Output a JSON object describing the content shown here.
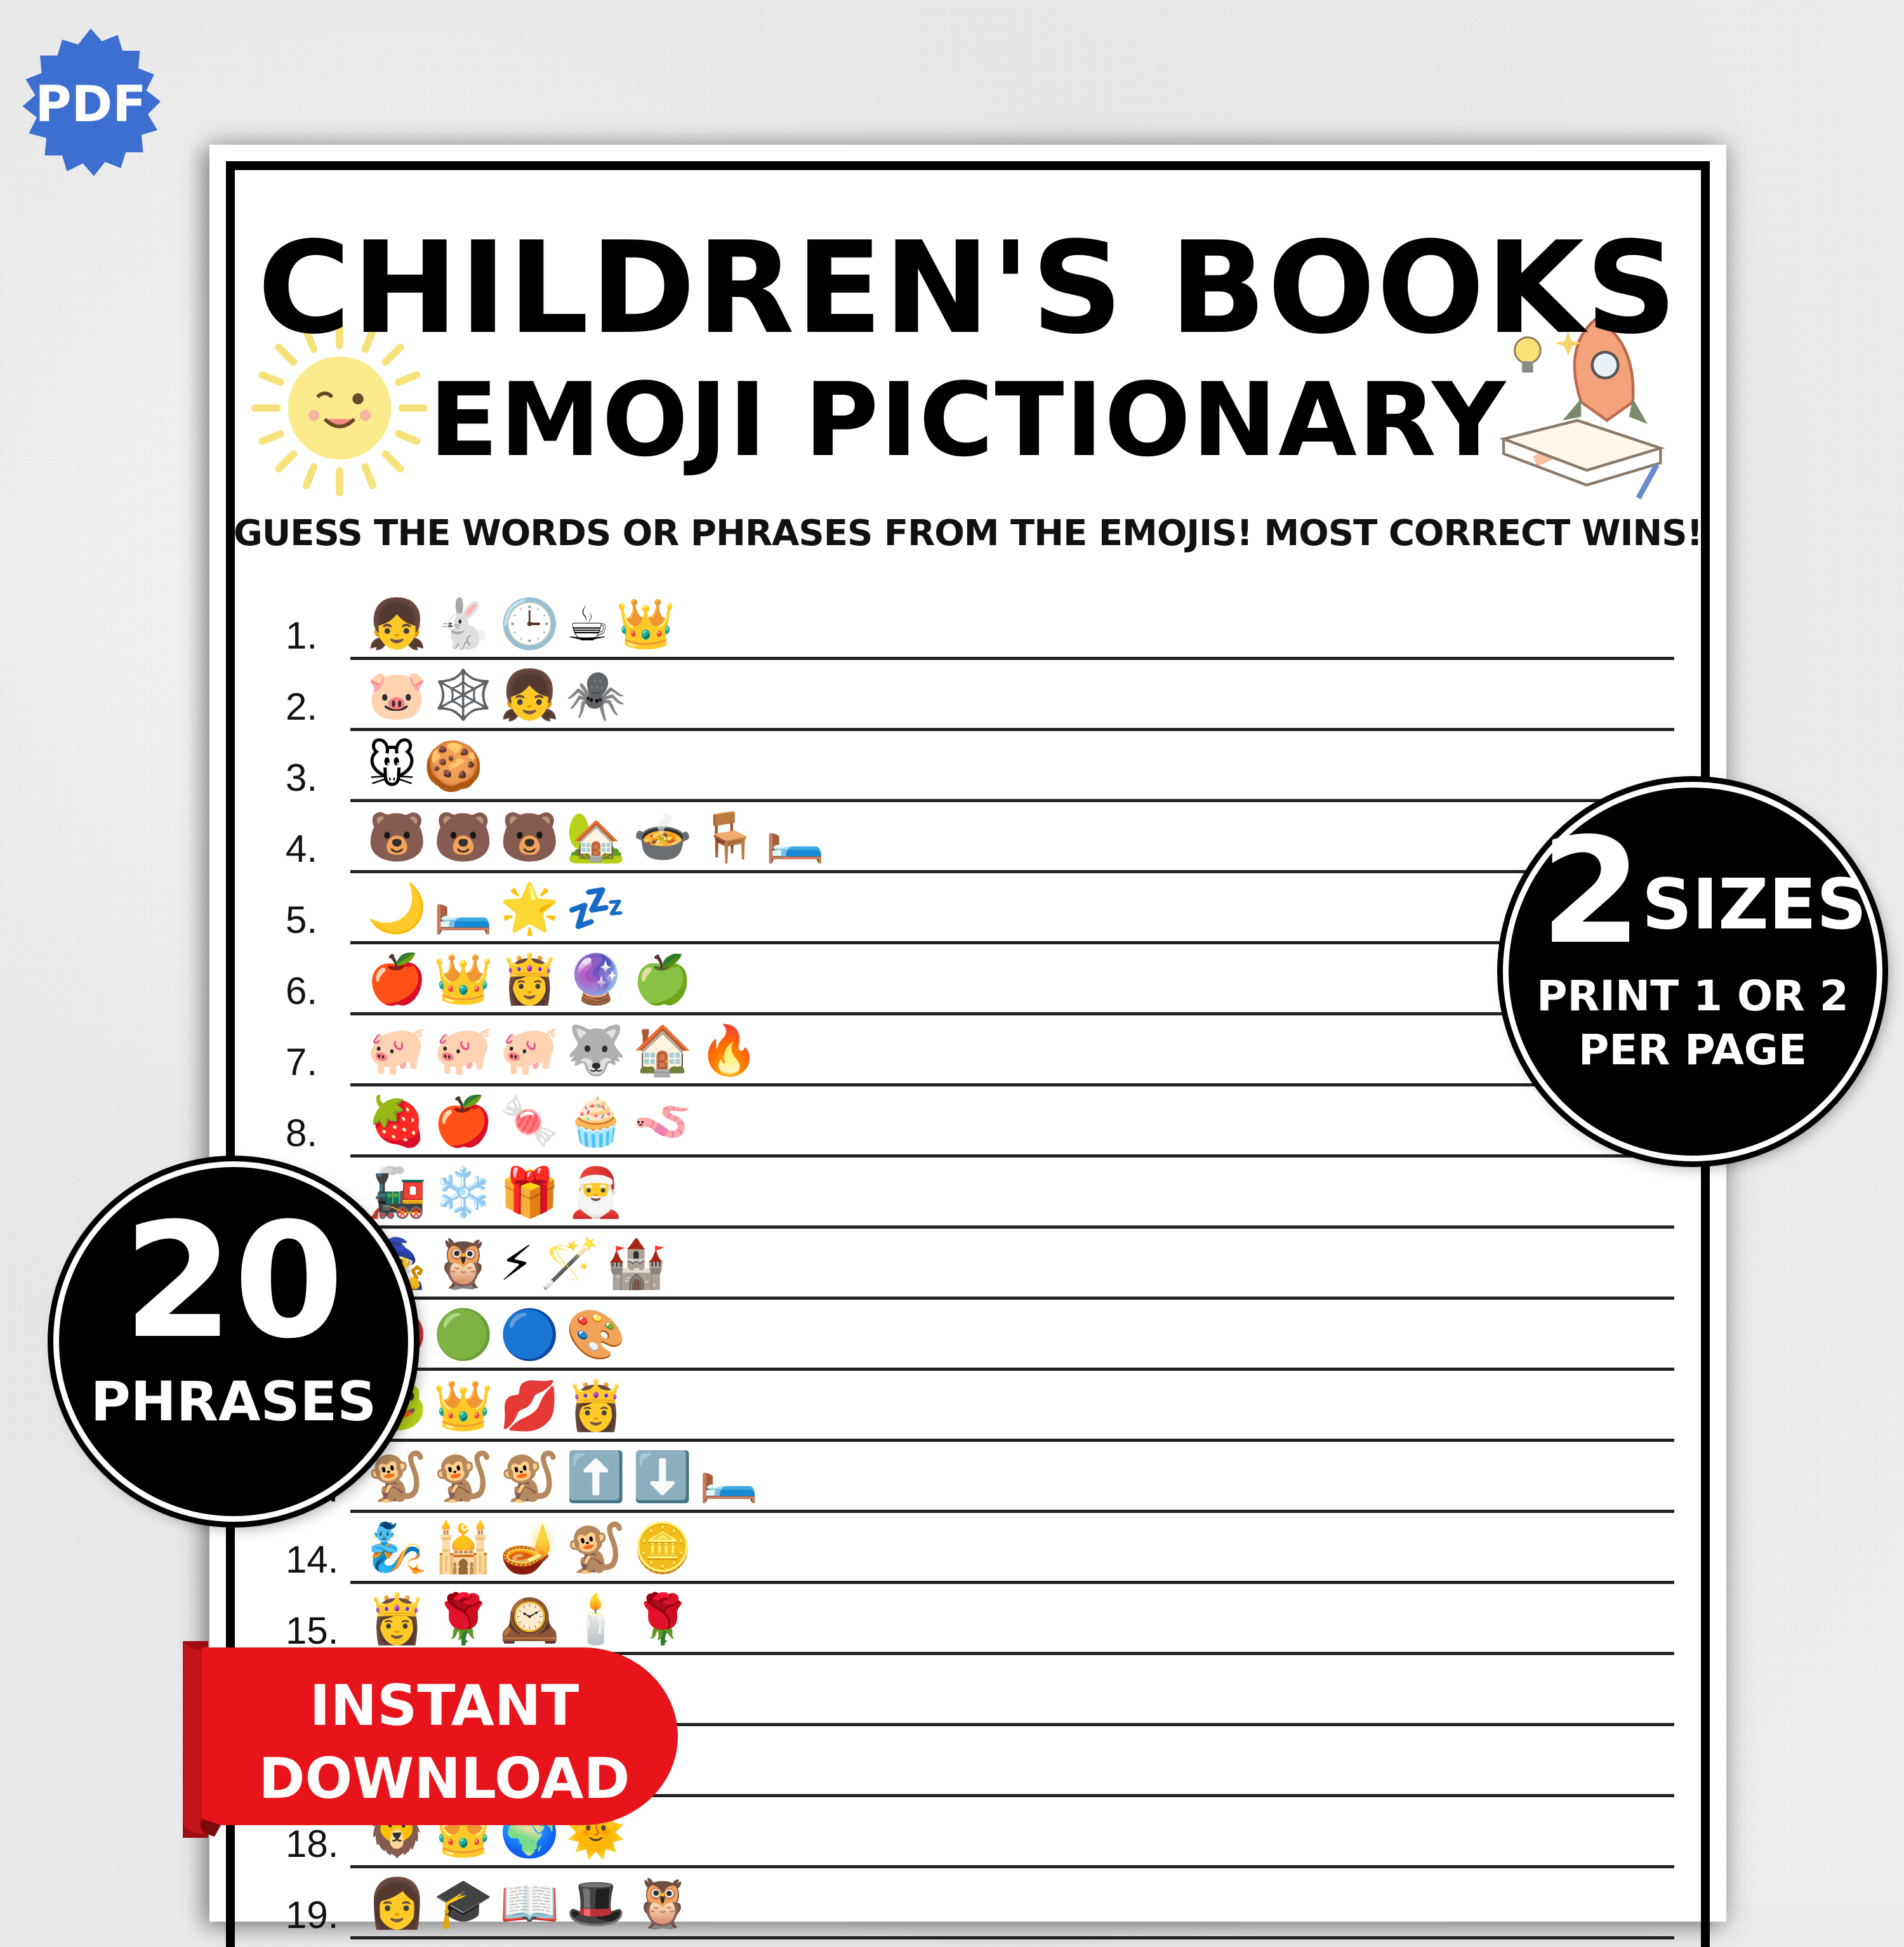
{
  "badge_pdf": "PDF",
  "title_line1": "CHILDREN'S BOOKS",
  "title_line2": "EMOJI PICTIONARY",
  "subtitle": "GUESS THE WORDS OR PHRASES FROM THE EMOJIS! MOST CORRECT WINS!",
  "rows": [
    {
      "num": "1.",
      "emojis": "👧🐇🕒☕👑"
    },
    {
      "num": "2.",
      "emojis": "🐷🕸️👧🕷️"
    },
    {
      "num": "3.",
      "emojis": "🐭🍪"
    },
    {
      "num": "4.",
      "emojis": "🐻🐻🐻🏡🍲🪑🛏️"
    },
    {
      "num": "5.",
      "emojis": "🌙🛏️🌟💤"
    },
    {
      "num": "6.",
      "emojis": "🍎👑👸🔮🍏"
    },
    {
      "num": "7.",
      "emojis": "🐖🐖🐖🐺🏠🔥"
    },
    {
      "num": "8.",
      "emojis": "🍓🍎🍬🧁🪱"
    },
    {
      "num": "",
      "emojis": "🚂❄️🎁🎅"
    },
    {
      "num": "",
      "emojis": "🧙🦉⚡🪄🏰"
    },
    {
      "num": "",
      "emojis": "🔴🟢🔵🎨"
    },
    {
      "num": "",
      "emojis": "🐸👑💋👸"
    },
    {
      "num": "13.",
      "emojis": "🐒🐒🐒⬆️⬇️🛏️"
    },
    {
      "num": "14.",
      "emojis": "🧞🕌🪔🐒🪙"
    },
    {
      "num": "15.",
      "emojis": "👸🌹🕰️🕯️🌹"
    },
    {
      "num": "",
      "emojis": ""
    },
    {
      "num": "",
      "emojis": ""
    },
    {
      "num": "18.",
      "emojis": "🦁👑🌍🌞"
    },
    {
      "num": "19.",
      "emojis": "👩🎓📖🎩🦉"
    }
  ],
  "badge_sizes": {
    "big": "2",
    "word": "SIZES",
    "line1": "PRINT 1 OR 2",
    "line2": "PER PAGE"
  },
  "badge_phrases": {
    "big": "20",
    "word": "PHRASES"
  },
  "ribbon": {
    "line1": "INSTANT",
    "line2": "DOWNLOAD"
  },
  "colors": {
    "pdf_badge": "#3d6fd1",
    "ribbon": "#e8141b",
    "ribbon_dark": "#9e0d12"
  }
}
